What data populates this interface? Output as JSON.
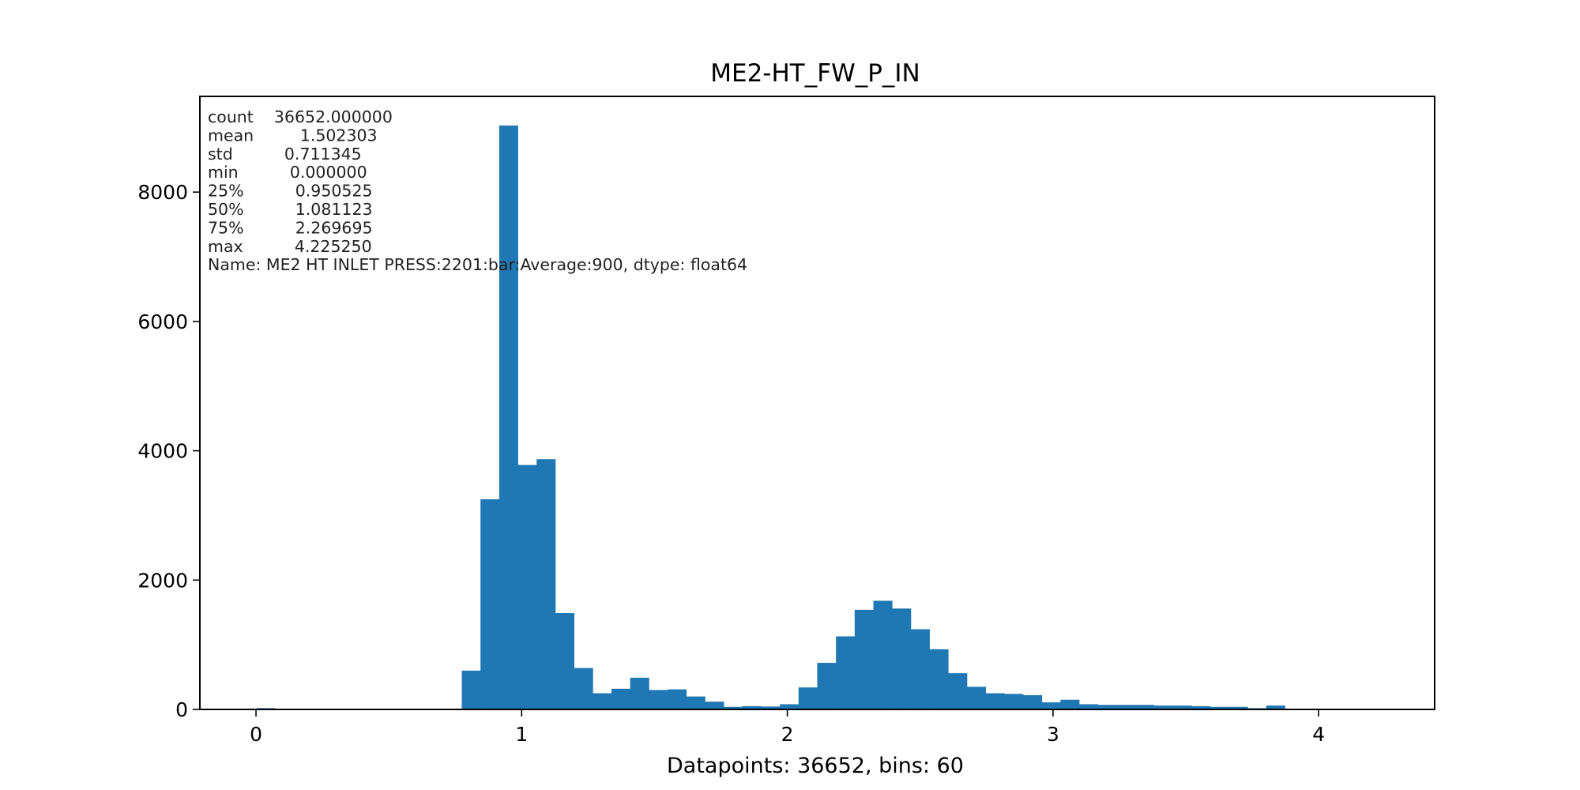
{
  "chart_data": {
    "type": "bar",
    "title": "ME2-HT_FW_P_IN",
    "xlabel": "Datapoints: 36652, bins: 60",
    "ylabel": "",
    "xlim": [
      -0.2113,
      4.4366
    ],
    "ylim": [
      0,
      9480
    ],
    "bin_edges": {
      "start": 0.0,
      "width": 0.0704208333,
      "count": 60
    },
    "values": [
      20,
      0,
      0,
      0,
      0,
      0,
      0,
      0,
      0,
      0,
      0,
      600,
      3250,
      9030,
      3780,
      3870,
      1490,
      640,
      250,
      320,
      490,
      300,
      310,
      200,
      120,
      40,
      50,
      45,
      80,
      340,
      720,
      1130,
      1540,
      1680,
      1560,
      1240,
      930,
      560,
      350,
      250,
      240,
      220,
      110,
      150,
      80,
      70,
      70,
      70,
      60,
      60,
      50,
      40,
      40,
      20,
      60,
      0,
      0,
      0,
      0,
      10
    ],
    "xticks": [
      0,
      1,
      2,
      3,
      4
    ],
    "xtick_labels": [
      "0",
      "1",
      "2",
      "3",
      "4"
    ],
    "yticks": [
      0,
      2000,
      4000,
      6000,
      8000
    ],
    "ytick_labels": [
      "0",
      "2000",
      "4000",
      "6000",
      "8000"
    ],
    "grid": false,
    "bar_color": "#1f77b4",
    "stats_text": [
      "count    36652.000000",
      "mean         1.502303",
      "std          0.711345",
      "min          0.000000",
      "25%          0.950525",
      "50%          1.081123",
      "75%          2.269695",
      "max          4.225250",
      "Name: ME2 HT INLET PRESS:2201:bar:Average:900, dtype: float64"
    ]
  }
}
